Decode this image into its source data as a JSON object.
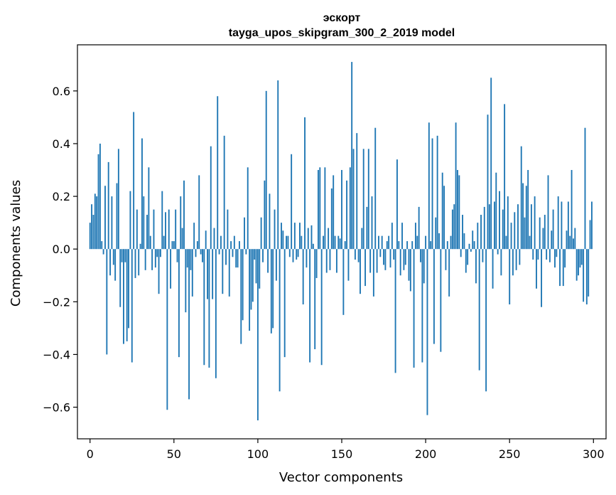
{
  "chart_data": {
    "type": "bar",
    "title": "эскорт",
    "subtitle": "tayga_upos_skipgram_300_2_2019 model",
    "xlabel": "Vector components",
    "ylabel": "Components values",
    "xlim": [
      -7.5,
      307.5
    ],
    "ylim": [
      -0.72,
      0.775
    ],
    "xticks": [
      0,
      50,
      100,
      150,
      200,
      250,
      300
    ],
    "xtick_labels": [
      "0",
      "50",
      "100",
      "150",
      "200",
      "250",
      "300"
    ],
    "yticks": [
      -0.6,
      -0.4,
      -0.2,
      0.0,
      0.2,
      0.4,
      0.6
    ],
    "ytick_labels": [
      "−0.6",
      "−0.4",
      "−0.2",
      "0.0",
      "0.2",
      "0.4",
      "0.6"
    ],
    "grid": false,
    "bar_color": "#1f77b4",
    "values": [
      0.1,
      0.17,
      0.13,
      0.21,
      0.2,
      0.36,
      0.4,
      0.03,
      -0.02,
      0.24,
      -0.4,
      0.33,
      -0.1,
      0.2,
      -0.06,
      -0.12,
      0.25,
      0.38,
      -0.22,
      -0.05,
      -0.36,
      -0.05,
      -0.35,
      -0.3,
      0.22,
      -0.43,
      0.52,
      -0.11,
      0.15,
      -0.1,
      0.02,
      0.42,
      0.2,
      -0.08,
      0.13,
      0.31,
      0.05,
      -0.08,
      0.15,
      -0.07,
      -0.03,
      -0.17,
      -0.03,
      0.22,
      0.05,
      0.14,
      -0.61,
      0.15,
      -0.15,
      0.03,
      0.03,
      0.15,
      -0.05,
      -0.41,
      0.2,
      0.08,
      0.26,
      -0.24,
      -0.07,
      -0.57,
      -0.08,
      -0.18,
      0.1,
      -0.03,
      0.03,
      0.28,
      -0.02,
      -0.05,
      -0.44,
      0.07,
      -0.19,
      -0.45,
      0.39,
      -0.19,
      0.08,
      -0.49,
      0.58,
      -0.02,
      0.05,
      -0.17,
      0.43,
      -0.06,
      0.15,
      -0.18,
      0.03,
      -0.03,
      0.05,
      -0.07,
      -0.07,
      0.03,
      -0.36,
      -0.27,
      0.12,
      -0.02,
      0.31,
      -0.31,
      -0.23,
      -0.2,
      -0.04,
      -0.13,
      -0.65,
      -0.15,
      0.12,
      -0.05,
      0.26,
      0.6,
      -0.09,
      0.21,
      -0.32,
      -0.3,
      0.15,
      -0.12,
      0.64,
      -0.54,
      0.1,
      0.07,
      -0.41,
      0.05,
      0.05,
      -0.03,
      0.36,
      -0.05,
      0.1,
      -0.04,
      -0.03,
      0.1,
      0.05,
      -0.21,
      0.5,
      -0.07,
      0.08,
      -0.43,
      0.09,
      0.02,
      -0.38,
      -0.11,
      0.3,
      0.31,
      -0.44,
      0.05,
      0.31,
      -0.09,
      0.08,
      -0.08,
      0.23,
      0.28,
      0.05,
      -0.09,
      0.05,
      0.04,
      0.3,
      -0.25,
      0.03,
      0.26,
      -0.12,
      0.31,
      0.71,
      0.38,
      -0.04,
      0.44,
      -0.05,
      -0.17,
      0.08,
      0.38,
      -0.14,
      0.16,
      0.38,
      -0.09,
      0.2,
      -0.18,
      0.46,
      -0.09,
      0.05,
      -0.03,
      0.05,
      -0.06,
      -0.08,
      0.03,
      0.05,
      -0.07,
      0.1,
      -0.04,
      -0.47,
      0.34,
      0.03,
      -0.1,
      0.1,
      -0.08,
      -0.06,
      0.03,
      -0.12,
      -0.16,
      0.03,
      -0.45,
      0.1,
      0.05,
      0.16,
      -0.05,
      -0.43,
      -0.13,
      0.05,
      -0.63,
      0.48,
      0.03,
      0.42,
      -0.36,
      0.12,
      0.43,
      0.06,
      -0.39,
      0.29,
      0.24,
      -0.08,
      0.03,
      -0.18,
      0.05,
      0.15,
      0.17,
      0.48,
      0.3,
      0.28,
      -0.03,
      0.13,
      0.06,
      -0.09,
      -0.06,
      0.02,
      -0.01,
      0.07,
      0.03,
      -0.13,
      0.1,
      -0.46,
      0.13,
      -0.05,
      0.16,
      -0.54,
      0.51,
      0.17,
      0.65,
      -0.15,
      0.18,
      0.29,
      -0.02,
      0.22,
      -0.1,
      0.15,
      0.55,
      0.05,
      0.2,
      -0.21,
      0.1,
      -0.1,
      0.14,
      -0.08,
      0.17,
      -0.06,
      0.39,
      0.25,
      0.12,
      0.24,
      0.3,
      0.05,
      0.17,
      -0.04,
      0.2,
      -0.15,
      -0.04,
      0.12,
      -0.22,
      0.08,
      0.13,
      -0.04,
      0.28,
      -0.05,
      0.07,
      0.15,
      -0.07,
      -0.03,
      0.2,
      -0.14,
      0.18,
      -0.14,
      -0.07,
      0.07,
      0.18,
      0.05,
      0.3,
      0.04,
      0.08,
      -0.12,
      -0.1,
      -0.07,
      -0.06,
      -0.2,
      0.46,
      -0.21,
      -0.18,
      0.11,
      0.18
    ]
  }
}
